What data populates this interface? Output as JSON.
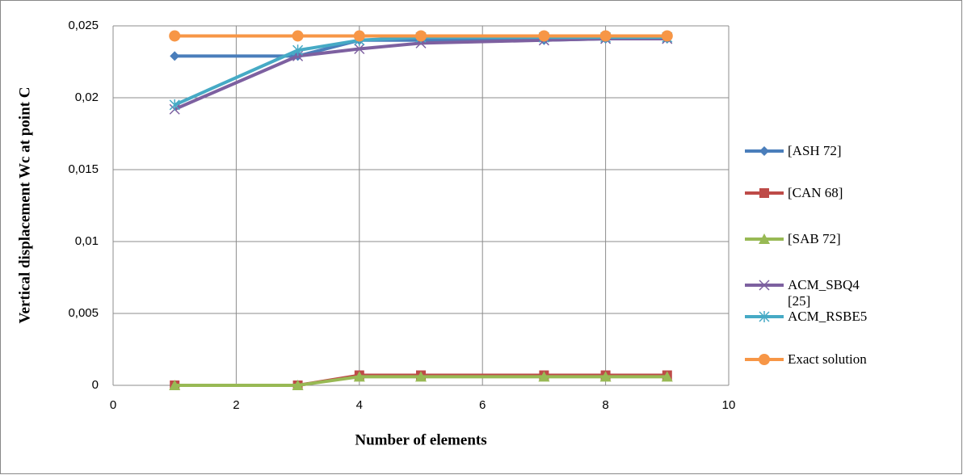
{
  "chart_data": {
    "type": "line",
    "xlabel": "Number of elements",
    "ylabel": "Vertical displacement Wc at point C",
    "x": [
      1,
      3,
      4,
      5,
      7,
      8,
      9
    ],
    "xlim": [
      0,
      10
    ],
    "xticks": [
      0,
      2,
      4,
      6,
      8,
      10
    ],
    "ylim": [
      0,
      0.025
    ],
    "yticks": [
      0,
      {
        "value": 0.005,
        "label": "0,005"
      },
      {
        "value": 0.01,
        "label": "0,01"
      },
      {
        "value": 0.015,
        "label": "0,015"
      },
      {
        "value": 0.02,
        "label": "0,02"
      },
      {
        "value": 0.025,
        "label": "0,025"
      }
    ],
    "grid": true,
    "legend": "right",
    "series": [
      {
        "name": "[ASH 72]",
        "color": "#4a7ebb",
        "marker": "diamond",
        "values": [
          0.0229,
          0.0229,
          0.024,
          0.024,
          0.024,
          0.0241,
          0.0241
        ]
      },
      {
        "name": "[CAN 68]",
        "color": "#be4b48",
        "marker": "square",
        "values": [
          0,
          0,
          0.0007,
          0.0007,
          0.0007,
          0.0007,
          0.0007
        ]
      },
      {
        "name": "[SAB 72]",
        "color": "#98b954",
        "marker": "triangle",
        "values": [
          0,
          0,
          0.0006,
          0.0006,
          0.0006,
          0.0006,
          0.0006
        ]
      },
      {
        "name": "ACM_SBQ4 [25]",
        "color": "#7d60a0",
        "marker": "x",
        "values": [
          0.0192,
          0.0229,
          0.0234,
          0.0238,
          0.024,
          0.0241,
          0.0241
        ]
      },
      {
        "name": "ACM_RSBE5",
        "color": "#46aac5",
        "marker": "star",
        "values": [
          0.0195,
          0.0233,
          0.024,
          0.0242,
          0.0242,
          0.0242,
          0.0242
        ]
      },
      {
        "name": "Exact solution",
        "color": "#f79646",
        "marker": "circle",
        "values": [
          0.0243,
          0.0243,
          0.0243,
          0.0243,
          0.0243,
          0.0243,
          0.0243
        ]
      }
    ]
  }
}
